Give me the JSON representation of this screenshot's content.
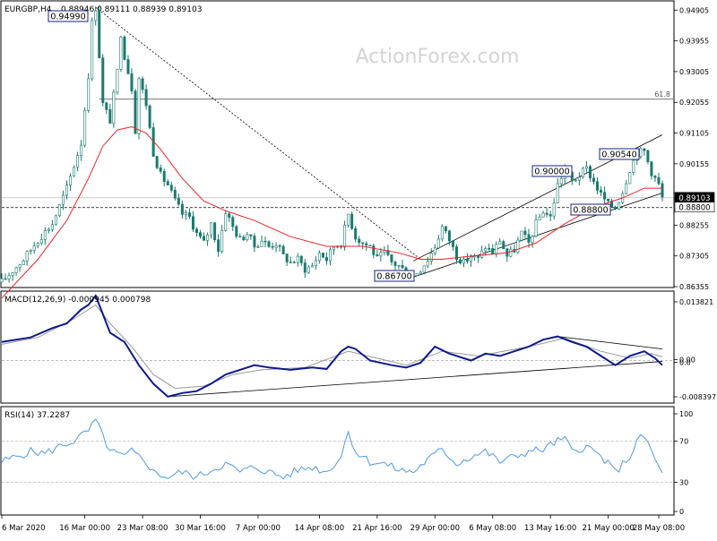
{
  "header": {
    "symbol": "EURGBP,H4",
    "ohlc": "0.88946 0.89111 0.88939 0.89103"
  },
  "watermark": "ActionForex.com",
  "chart_data": [
    {
      "type": "candlestick",
      "ylim": [
        0.86355,
        0.95135
      ],
      "yticks": [
        "0.94905",
        "0.93955",
        "0.93005",
        "0.92055",
        "0.91105",
        "0.90155",
        "0.89103",
        "0.88800",
        "0.88255",
        "0.87305",
        "0.86355"
      ],
      "current_price_label": "0.89103",
      "support_label": "0.88800",
      "fib_label": "61.8",
      "fib_level": 0.9215,
      "annotations": [
        {
          "text": "0.94990",
          "value": 0.9499
        },
        {
          "text": "0.86700",
          "value": 0.867
        },
        {
          "text": "0.90000",
          "value": 0.9
        },
        {
          "text": "0.90540",
          "value": 0.9054
        },
        {
          "text": "0.88800",
          "value": 0.888
        }
      ],
      "close_path": [
        [
          0,
          0.865
        ],
        [
          6,
          0.872
        ],
        [
          10,
          0.878
        ],
        [
          14,
          0.883
        ],
        [
          18,
          0.894
        ],
        [
          22,
          0.908
        ],
        [
          24,
          0.929
        ],
        [
          25,
          0.945
        ],
        [
          26,
          0.9499
        ],
        [
          27,
          0.935
        ],
        [
          28,
          0.92
        ],
        [
          30,
          0.915
        ],
        [
          32,
          0.93
        ],
        [
          33,
          0.942
        ],
        [
          34,
          0.935
        ],
        [
          36,
          0.925
        ],
        [
          37,
          0.912
        ],
        [
          38,
          0.928
        ],
        [
          40,
          0.92
        ],
        [
          42,
          0.905
        ],
        [
          44,
          0.898
        ],
        [
          46,
          0.895
        ],
        [
          48,
          0.89
        ],
        [
          50,
          0.886
        ],
        [
          52,
          0.885
        ],
        [
          54,
          0.88
        ],
        [
          56,
          0.877
        ],
        [
          58,
          0.883
        ],
        [
          60,
          0.875
        ],
        [
          62,
          0.887
        ],
        [
          64,
          0.882
        ],
        [
          66,
          0.878
        ],
        [
          68,
          0.88
        ],
        [
          70,
          0.876
        ],
        [
          72,
          0.878
        ],
        [
          74,
          0.876
        ],
        [
          76,
          0.877
        ],
        [
          78,
          0.873
        ],
        [
          80,
          0.871
        ],
        [
          82,
          0.872
        ],
        [
          84,
          0.869
        ],
        [
          86,
          0.87
        ],
        [
          88,
          0.874
        ],
        [
          90,
          0.872
        ],
        [
          92,
          0.876
        ],
        [
          94,
          0.877
        ],
        [
          96,
          0.886
        ],
        [
          98,
          0.879
        ],
        [
          100,
          0.877
        ],
        [
          102,
          0.876
        ],
        [
          104,
          0.872
        ],
        [
          106,
          0.874
        ],
        [
          108,
          0.871
        ],
        [
          110,
          0.87
        ],
        [
          112,
          0.868
        ],
        [
          114,
          0.867
        ],
        [
          116,
          0.869
        ],
        [
          118,
          0.872
        ],
        [
          120,
          0.876
        ],
        [
          122,
          0.882
        ],
        [
          124,
          0.878
        ],
        [
          126,
          0.873
        ],
        [
          128,
          0.871
        ],
        [
          130,
          0.873
        ],
        [
          132,
          0.872
        ],
        [
          134,
          0.876
        ],
        [
          136,
          0.874
        ],
        [
          138,
          0.878
        ],
        [
          140,
          0.873
        ],
        [
          142,
          0.875
        ],
        [
          144,
          0.88
        ],
        [
          146,
          0.877
        ],
        [
          148,
          0.883
        ],
        [
          150,
          0.887
        ],
        [
          152,
          0.885
        ],
        [
          154,
          0.895
        ],
        [
          156,
          0.9
        ],
        [
          158,
          0.896
        ],
        [
          160,
          0.898
        ],
        [
          162,
          0.9
        ],
        [
          164,
          0.896
        ],
        [
          166,
          0.892
        ],
        [
          168,
          0.889
        ],
        [
          170,
          0.888
        ],
        [
          172,
          0.893
        ],
        [
          174,
          0.9
        ],
        [
          176,
          0.905
        ],
        [
          178,
          0.9054
        ],
        [
          180,
          0.899
        ],
        [
          182,
          0.895
        ],
        [
          183,
          0.891
        ]
      ],
      "ma_path": [
        [
          0,
          0.86
        ],
        [
          10,
          0.872
        ],
        [
          18,
          0.884
        ],
        [
          24,
          0.897
        ],
        [
          28,
          0.907
        ],
        [
          32,
          0.912
        ],
        [
          36,
          0.913
        ],
        [
          40,
          0.911
        ],
        [
          44,
          0.906
        ],
        [
          50,
          0.897
        ],
        [
          56,
          0.89
        ],
        [
          62,
          0.887
        ],
        [
          70,
          0.884
        ],
        [
          80,
          0.879
        ],
        [
          90,
          0.876
        ],
        [
          100,
          0.876
        ],
        [
          110,
          0.874
        ],
        [
          116,
          0.872
        ],
        [
          122,
          0.872
        ],
        [
          130,
          0.873
        ],
        [
          140,
          0.874
        ],
        [
          148,
          0.877
        ],
        [
          156,
          0.883
        ],
        [
          164,
          0.888
        ],
        [
          172,
          0.891
        ],
        [
          178,
          0.894
        ],
        [
          183,
          0.894
        ]
      ]
    },
    {
      "type": "line",
      "title": "MACD(12,26,9) -0.000945 0.000798",
      "ylim": [
        -0.008397,
        0.013821
      ],
      "yticks": [
        "0.013821",
        "0.00",
        "0.0",
        "-0.008397"
      ],
      "macd_path": [
        [
          0,
          0.004
        ],
        [
          8,
          0.005
        ],
        [
          14,
          0.007
        ],
        [
          18,
          0.008
        ],
        [
          22,
          0.011
        ],
        [
          24,
          0.012
        ],
        [
          26,
          0.014
        ],
        [
          28,
          0.01
        ],
        [
          30,
          0.006
        ],
        [
          34,
          0.004
        ],
        [
          38,
          -0.001
        ],
        [
          42,
          -0.005
        ],
        [
          46,
          -0.0078
        ],
        [
          50,
          -0.007
        ],
        [
          54,
          -0.0066
        ],
        [
          58,
          -0.005
        ],
        [
          62,
          -0.003
        ],
        [
          66,
          -0.002
        ],
        [
          70,
          -0.001
        ],
        [
          74,
          -0.0015
        ],
        [
          80,
          -0.002
        ],
        [
          86,
          -0.0015
        ],
        [
          90,
          -0.0018
        ],
        [
          94,
          0.002
        ],
        [
          96,
          0.003
        ],
        [
          98,
          0.0025
        ],
        [
          102,
          0
        ],
        [
          108,
          -0.001
        ],
        [
          112,
          -0.0015
        ],
        [
          116,
          -0.0005
        ],
        [
          120,
          0.003
        ],
        [
          124,
          0.0015
        ],
        [
          130,
          0
        ],
        [
          134,
          0.0015
        ],
        [
          138,
          0.001
        ],
        [
          142,
          0.002
        ],
        [
          146,
          0.003
        ],
        [
          150,
          0.0045
        ],
        [
          154,
          0.0052
        ],
        [
          158,
          0.004
        ],
        [
          162,
          0.003
        ],
        [
          166,
          0.001
        ],
        [
          170,
          -0.001
        ],
        [
          174,
          0.001
        ],
        [
          178,
          0.002
        ],
        [
          181,
          0.0005
        ],
        [
          183,
          -0.001
        ]
      ],
      "signal_path": [
        [
          0,
          0.0035
        ],
        [
          10,
          0.005
        ],
        [
          20,
          0.009
        ],
        [
          26,
          0.012
        ],
        [
          30,
          0.008
        ],
        [
          36,
          0.003
        ],
        [
          42,
          -0.003
        ],
        [
          48,
          -0.006
        ],
        [
          56,
          -0.0055
        ],
        [
          64,
          -0.003
        ],
        [
          72,
          -0.002
        ],
        [
          84,
          -0.0015
        ],
        [
          96,
          0.002
        ],
        [
          104,
          0.0005
        ],
        [
          112,
          -0.001
        ],
        [
          122,
          0.002
        ],
        [
          132,
          0.001
        ],
        [
          146,
          0.003
        ],
        [
          156,
          0.0048
        ],
        [
          166,
          0.002
        ],
        [
          174,
          0.0005
        ],
        [
          180,
          0.0015
        ],
        [
          183,
          0.0008
        ]
      ]
    },
    {
      "type": "line",
      "title": "RSI(14) 37.2287",
      "ylim": [
        0,
        100
      ],
      "yticks": [
        "100",
        "70",
        "30",
        "0"
      ],
      "levels": [
        70,
        30
      ],
      "rsi_path": [
        [
          0,
          50
        ],
        [
          4,
          55
        ],
        [
          8,
          60
        ],
        [
          12,
          58
        ],
        [
          16,
          65
        ],
        [
          20,
          70
        ],
        [
          24,
          80
        ],
        [
          26,
          90
        ],
        [
          28,
          75
        ],
        [
          30,
          60
        ],
        [
          34,
          55
        ],
        [
          36,
          60
        ],
        [
          40,
          50
        ],
        [
          42,
          40
        ],
        [
          46,
          35
        ],
        [
          50,
          40
        ],
        [
          54,
          35
        ],
        [
          58,
          42
        ],
        [
          62,
          48
        ],
        [
          66,
          40
        ],
        [
          70,
          45
        ],
        [
          74,
          40
        ],
        [
          78,
          35
        ],
        [
          82,
          42
        ],
        [
          86,
          45
        ],
        [
          90,
          40
        ],
        [
          94,
          55
        ],
        [
          96,
          80
        ],
        [
          98,
          60
        ],
        [
          102,
          50
        ],
        [
          106,
          48
        ],
        [
          110,
          42
        ],
        [
          114,
          40
        ],
        [
          118,
          52
        ],
        [
          122,
          62
        ],
        [
          126,
          48
        ],
        [
          130,
          55
        ],
        [
          134,
          60
        ],
        [
          138,
          50
        ],
        [
          142,
          55
        ],
        [
          146,
          60
        ],
        [
          150,
          62
        ],
        [
          154,
          70
        ],
        [
          156,
          72
        ],
        [
          158,
          60
        ],
        [
          162,
          65
        ],
        [
          166,
          55
        ],
        [
          170,
          40
        ],
        [
          174,
          55
        ],
        [
          176,
          70
        ],
        [
          178,
          75
        ],
        [
          180,
          60
        ],
        [
          182,
          45
        ],
        [
          183,
          37
        ]
      ]
    }
  ],
  "x_axis": {
    "labels": [
      {
        "text": "6 Mar 2020",
        "i": 0
      },
      {
        "text": "16 Mar 00:00",
        "i": 23
      },
      {
        "text": "23 Mar 08:00",
        "i": 39
      },
      {
        "text": "30 Mar 16:00",
        "i": 55
      },
      {
        "text": "7 Apr 00:00",
        "i": 71
      },
      {
        "text": "14 Apr 08:00",
        "i": 88
      },
      {
        "text": "21 Apr 16:00",
        "i": 104
      },
      {
        "text": "29 Apr 00:00",
        "i": 120
      },
      {
        "text": "6 May 08:00",
        "i": 136
      },
      {
        "text": "13 May 16:00",
        "i": 152
      },
      {
        "text": "21 May 00:00",
        "i": 168
      },
      {
        "text": "28 May 08:00",
        "i": 182
      }
    ]
  },
  "colors": {
    "candle": "#1a7a6e",
    "ma": "#e8262a",
    "macd": "#0f1a8c",
    "signal": "#9a9a9a",
    "rsi": "#4f9be0",
    "annotation_border": "#1a237e",
    "grid": "#888888"
  }
}
